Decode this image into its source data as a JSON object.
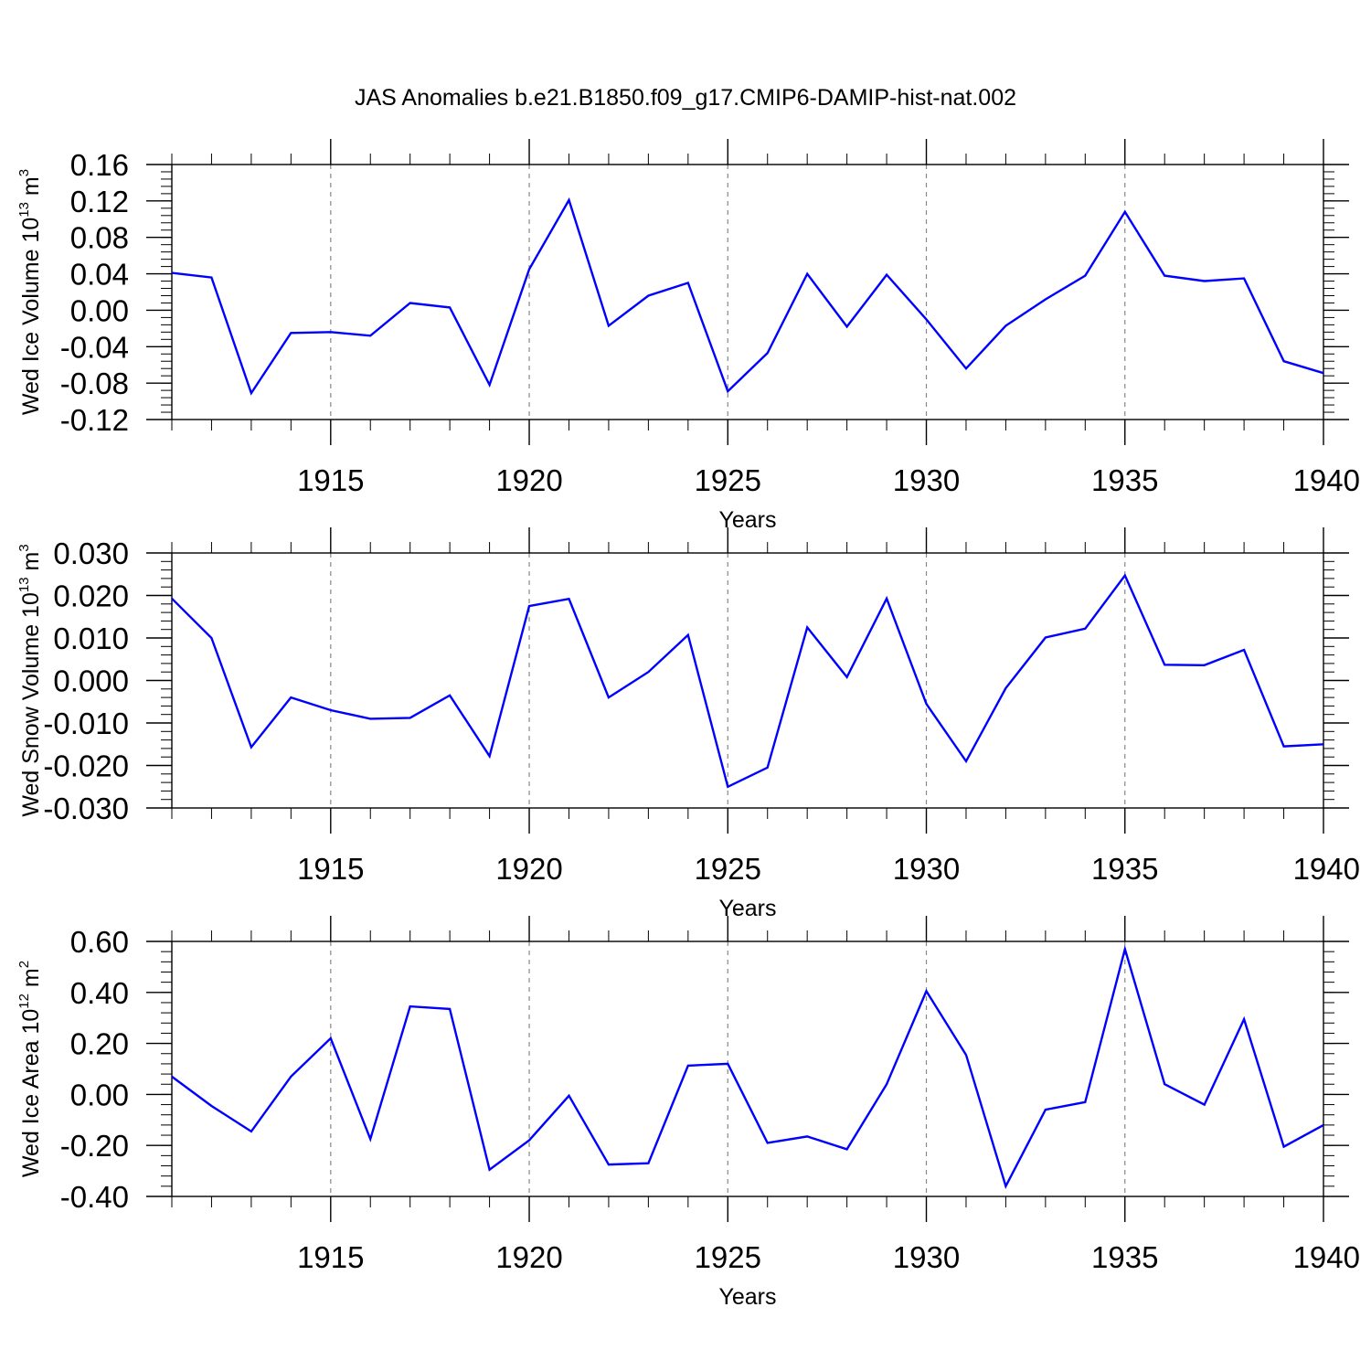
{
  "title": "JAS Anomalies b.e21.B1850.f09_g17.CMIP6-DAMIP-hist-nat.002",
  "chart_data": [
    {
      "type": "line",
      "xlabel": "Years",
      "ylabel": {
        "base": "Wed Ice Volume 10",
        "exp": "13",
        "unit": " m",
        "unit_exp": "3"
      },
      "xlim": [
        1911,
        1940
      ],
      "ylim": [
        -0.12,
        0.16
      ],
      "xticks": [
        1915,
        1920,
        1925,
        1930,
        1935,
        1940
      ],
      "yticks": [
        "0.16",
        "0.12",
        "0.08",
        "0.04",
        "0.00",
        "-0.04",
        "-0.08",
        "-0.12"
      ],
      "ytick_values": [
        0.16,
        0.12,
        0.08,
        0.04,
        0.0,
        -0.04,
        -0.08,
        -0.12
      ],
      "y_minor_step": 0.008,
      "grid": "vertical-dashed",
      "line_color": "#0000ff",
      "x": [
        1911,
        1912,
        1913,
        1914,
        1915,
        1916,
        1917,
        1918,
        1919,
        1920,
        1921,
        1922,
        1923,
        1924,
        1925,
        1926,
        1927,
        1928,
        1929,
        1930,
        1931,
        1932,
        1933,
        1934,
        1935,
        1936,
        1937,
        1938,
        1939,
        1940
      ],
      "values": [
        0.041,
        0.036,
        -0.091,
        -0.025,
        -0.024,
        -0.028,
        0.008,
        0.003,
        -0.082,
        0.045,
        0.121,
        -0.017,
        0.016,
        0.03,
        -0.089,
        -0.047,
        0.04,
        -0.018,
        0.039,
        -0.01,
        -0.064,
        -0.017,
        0.012,
        0.038,
        0.108,
        0.038,
        0.032,
        0.035,
        -0.056,
        -0.069
      ]
    },
    {
      "type": "line",
      "xlabel": "Years",
      "ylabel": {
        "base": "Wed Snow Volume 10",
        "exp": "13",
        "unit": " m",
        "unit_exp": "3"
      },
      "xlim": [
        1911,
        1940
      ],
      "ylim": [
        -0.03,
        0.03
      ],
      "xticks": [
        1915,
        1920,
        1925,
        1930,
        1935,
        1940
      ],
      "yticks": [
        "0.030",
        "0.020",
        "0.010",
        "0.000",
        "-0.010",
        "-0.020",
        "-0.030"
      ],
      "ytick_values": [
        0.03,
        0.02,
        0.01,
        0.0,
        -0.01,
        -0.02,
        -0.03
      ],
      "y_minor_step": 0.002,
      "grid": "vertical-dashed",
      "line_color": "#0000ff",
      "x": [
        1911,
        1912,
        1913,
        1914,
        1915,
        1916,
        1917,
        1918,
        1919,
        1920,
        1921,
        1922,
        1923,
        1924,
        1925,
        1926,
        1927,
        1928,
        1929,
        1930,
        1931,
        1932,
        1933,
        1934,
        1935,
        1936,
        1937,
        1938,
        1939,
        1940
      ],
      "values": [
        0.0193,
        0.01,
        -0.0157,
        -0.004,
        -0.007,
        -0.009,
        -0.0088,
        -0.0035,
        -0.0178,
        0.0175,
        0.0192,
        -0.004,
        0.002,
        0.0107,
        -0.025,
        -0.0205,
        0.0125,
        0.0008,
        0.0193,
        -0.0055,
        -0.019,
        -0.0018,
        0.0101,
        0.0122,
        0.0247,
        0.0037,
        0.0036,
        0.0072,
        -0.0155,
        -0.015
      ]
    },
    {
      "type": "line",
      "xlabel": "Years",
      "ylabel": {
        "base": "Wed Ice Area 10",
        "exp": "12",
        "unit": " m",
        "unit_exp": "2"
      },
      "xlim": [
        1911,
        1940
      ],
      "ylim": [
        -0.4,
        0.6
      ],
      "xticks": [
        1915,
        1920,
        1925,
        1930,
        1935,
        1940
      ],
      "yticks": [
        "0.60",
        "0.40",
        "0.20",
        "0.00",
        "-0.20",
        "-0.40"
      ],
      "ytick_values": [
        0.6,
        0.4,
        0.2,
        0.0,
        -0.2,
        -0.4
      ],
      "y_minor_step": 0.04,
      "grid": "vertical-dashed",
      "line_color": "#0000ff",
      "x": [
        1911,
        1912,
        1913,
        1914,
        1915,
        1916,
        1917,
        1918,
        1919,
        1920,
        1921,
        1922,
        1923,
        1924,
        1925,
        1926,
        1927,
        1928,
        1929,
        1930,
        1931,
        1932,
        1933,
        1934,
        1935,
        1936,
        1937,
        1938,
        1939,
        1940
      ],
      "values": [
        0.07,
        -0.045,
        -0.145,
        0.07,
        0.22,
        -0.175,
        0.345,
        0.335,
        -0.295,
        -0.18,
        -0.005,
        -0.275,
        -0.27,
        0.113,
        0.12,
        -0.19,
        -0.165,
        -0.215,
        0.04,
        0.405,
        0.155,
        -0.36,
        -0.06,
        -0.03,
        0.57,
        0.04,
        -0.04,
        0.295,
        -0.205,
        -0.12
      ]
    }
  ]
}
